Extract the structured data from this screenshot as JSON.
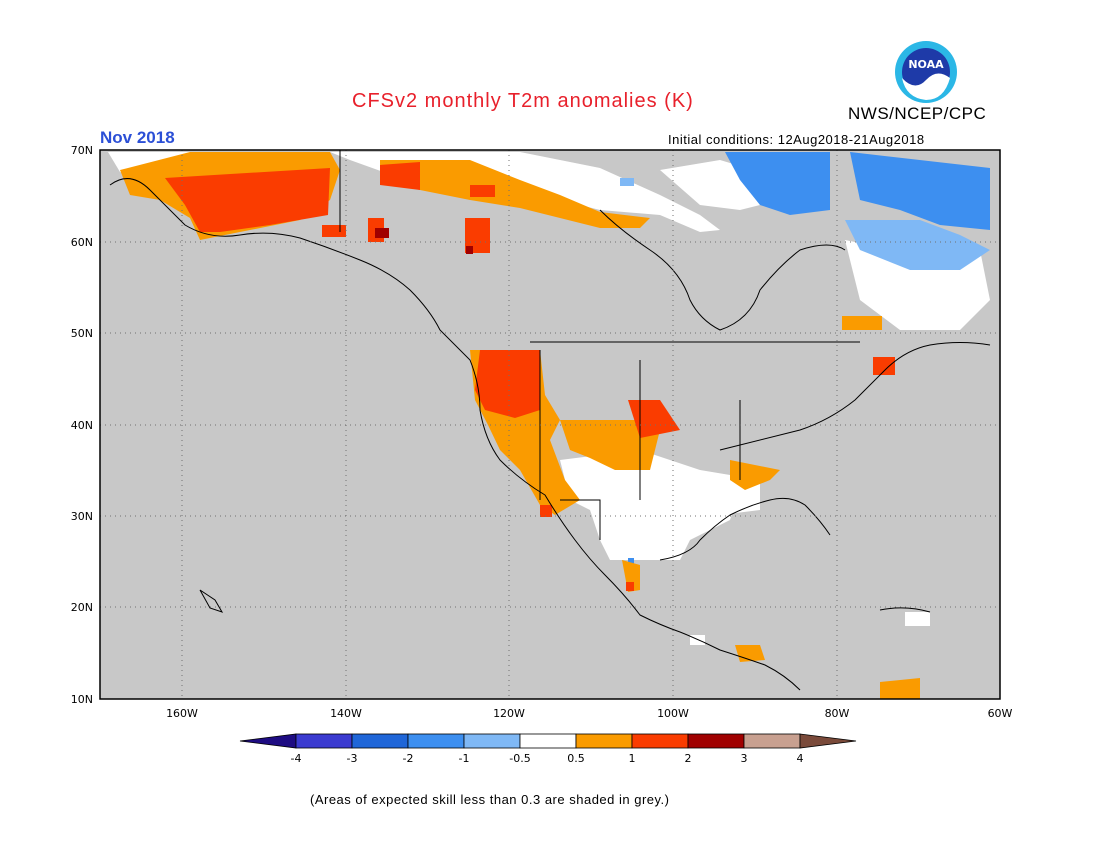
{
  "header": {
    "title": "CFSv2 monthly T2m anomalies (K)",
    "agency": "NWS/NCEP/CPC",
    "logo_text": "NOAA",
    "month": "Nov 2018",
    "initial_conditions": "Initial conditions: 12Aug2018-21Aug2018"
  },
  "map": {
    "lat_labels": [
      "70N",
      "60N",
      "50N",
      "40N",
      "30N",
      "20N",
      "10N"
    ],
    "lon_labels": [
      "160W",
      "140W",
      "120W",
      "100W",
      "80W",
      "60W"
    ],
    "grey_color": "#c8c8c8"
  },
  "legend": {
    "labels": [
      "-4",
      "-3",
      "-2",
      "-1",
      "-0.5",
      "0.5",
      "1",
      "2",
      "3",
      "4"
    ],
    "colors": [
      "#1e0c82",
      "#3b3bd0",
      "#1f66d8",
      "#3d8ff0",
      "#7fb8f5",
      "#ffffff",
      "#fa9b00",
      "#fa3c00",
      "#a00000",
      "#c8a090",
      "#7a4a3a"
    ]
  },
  "footnote": "(Areas of expected skill less than 0.3 are shaded in grey.)"
}
